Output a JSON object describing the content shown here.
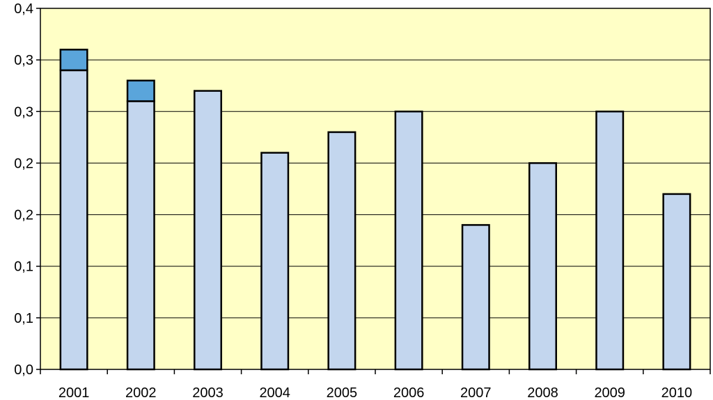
{
  "chart_data": {
    "type": "bar",
    "stacked": true,
    "categories": [
      "2001",
      "2002",
      "2003",
      "2004",
      "2005",
      "2006",
      "2007",
      "2008",
      "2009",
      "2010"
    ],
    "series": [
      {
        "values": [
          0.29,
          0.26,
          0.27,
          0.21,
          0.23,
          0.25,
          0.14,
          0.2,
          0.25,
          0.17
        ]
      },
      {
        "values": [
          0.02,
          0.02,
          0,
          0,
          0,
          0,
          0,
          0,
          0,
          0
        ]
      }
    ],
    "ylim": [
      0,
      0.35
    ],
    "y_tick_labels": [
      "0,0",
      "0,1",
      "0,1",
      "0,2",
      "0,2",
      "0,3",
      "0,3",
      "0,4"
    ],
    "grid": true,
    "legend": "none",
    "colors": {
      "plot_background": "#FFFFC6",
      "series_1": "#C3D6EE",
      "series_2": "#5AA5DB",
      "bar_outline": "#000000",
      "gridline": "#000000"
    },
    "title": "",
    "xlabel": "",
    "ylabel": ""
  }
}
